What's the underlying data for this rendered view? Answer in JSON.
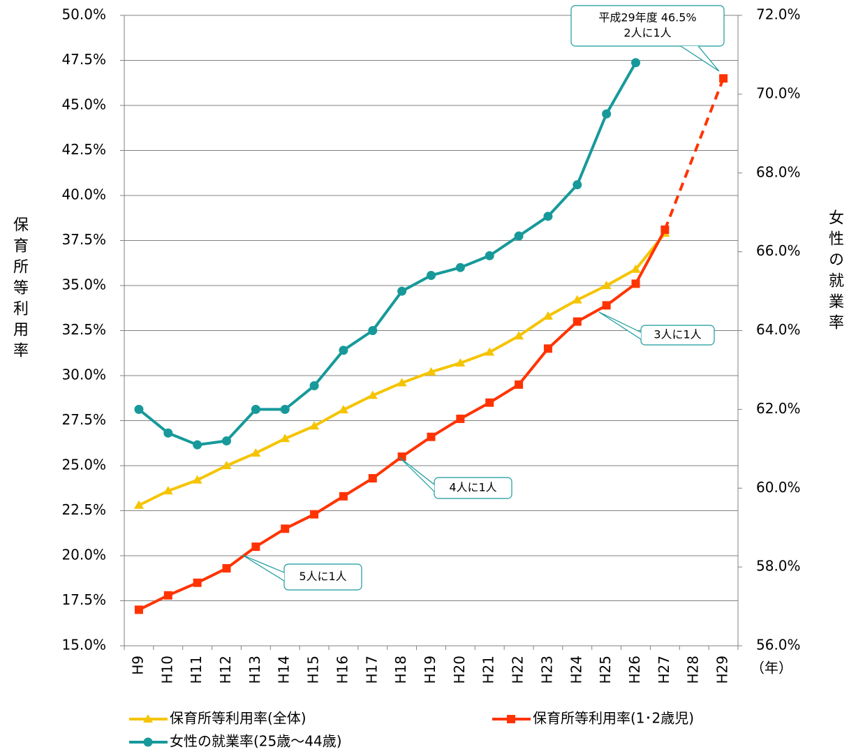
{
  "chart_data": {
    "type": "line",
    "categories": [
      "H9",
      "H10",
      "H11",
      "H12",
      "H13",
      "H14",
      "H15",
      "H16",
      "H17",
      "H18",
      "H19",
      "H20",
      "H21",
      "H22",
      "H23",
      "H24",
      "H25",
      "H26",
      "H27",
      "H28",
      "H29"
    ],
    "x_unit": "（年）",
    "ylabel": "保育所等利用率",
    "y2label": "女性の就業率",
    "ylim": [
      15,
      50
    ],
    "yticks": [
      {
        "value": 15,
        "label": "15.0%"
      },
      {
        "value": 17.5,
        "label": "17.5%"
      },
      {
        "value": 20,
        "label": "20.0%"
      },
      {
        "value": 22.5,
        "label": "22.5%"
      },
      {
        "value": 25,
        "label": "25.0%"
      },
      {
        "value": 27.5,
        "label": "27.5%"
      },
      {
        "value": 30,
        "label": "30.0%"
      },
      {
        "value": 32.5,
        "label": "32.5%"
      },
      {
        "value": 35,
        "label": "35.0%"
      },
      {
        "value": 37.5,
        "label": "37.5%"
      },
      {
        "value": 40,
        "label": "40.0%"
      },
      {
        "value": 42.5,
        "label": "42.5%"
      },
      {
        "value": 45,
        "label": "45.0%"
      },
      {
        "value": 47.5,
        "label": "47.5%"
      },
      {
        "value": 50,
        "label": "50.0%"
      }
    ],
    "y2lim": [
      56,
      72
    ],
    "y2ticks": [
      {
        "value": 56,
        "label": "56.0%"
      },
      {
        "value": 58,
        "label": "58.0%"
      },
      {
        "value": 60,
        "label": "60.0%"
      },
      {
        "value": 62,
        "label": "62.0%"
      },
      {
        "value": 64,
        "label": "64.0%"
      },
      {
        "value": 66,
        "label": "66.0%"
      },
      {
        "value": 68,
        "label": "68.0%"
      },
      {
        "value": 70,
        "label": "70.0%"
      },
      {
        "value": 72,
        "label": "72.0%"
      }
    ],
    "grid": true,
    "legend": "bottom",
    "series": [
      {
        "name": "保育所等利用率(全体)",
        "color": "#f5c400",
        "marker": "triangle",
        "values": [
          22.8,
          23.6,
          24.2,
          25.0,
          25.7,
          26.5,
          27.2,
          28.1,
          28.9,
          29.6,
          30.2,
          30.7,
          31.3,
          32.2,
          33.3,
          34.2,
          35.0,
          35.9,
          37.9,
          null,
          null
        ]
      },
      {
        "name": "保育所等利用率(1･2歳児)",
        "color": "#ff3300",
        "marker": "square",
        "gap_style": "dashed",
        "values": [
          17.0,
          17.8,
          18.5,
          19.3,
          20.5,
          21.5,
          22.3,
          23.3,
          24.3,
          25.5,
          26.6,
          27.6,
          28.5,
          29.5,
          31.5,
          33.0,
          33.9,
          35.1,
          38.1,
          null,
          46.5
        ]
      },
      {
        "name": "女性の就業率(25歳～44歳)",
        "color": "#17999a",
        "marker": "circle",
        "axis": "y2",
        "values": [
          62.0,
          61.4,
          61.1,
          61.2,
          62.0,
          62.0,
          62.6,
          63.5,
          64.0,
          65.0,
          65.4,
          65.6,
          65.9,
          66.4,
          66.9,
          67.7,
          69.5,
          70.8,
          null,
          null,
          null
        ]
      }
    ],
    "annotations": [
      {
        "lines": [
          "平成29年度  46.5%",
          "2人に1人"
        ]
      },
      {
        "lines": [
          "3人に1人"
        ]
      },
      {
        "lines": [
          "4人に1人"
        ]
      },
      {
        "lines": [
          "5人に1人"
        ]
      }
    ]
  }
}
